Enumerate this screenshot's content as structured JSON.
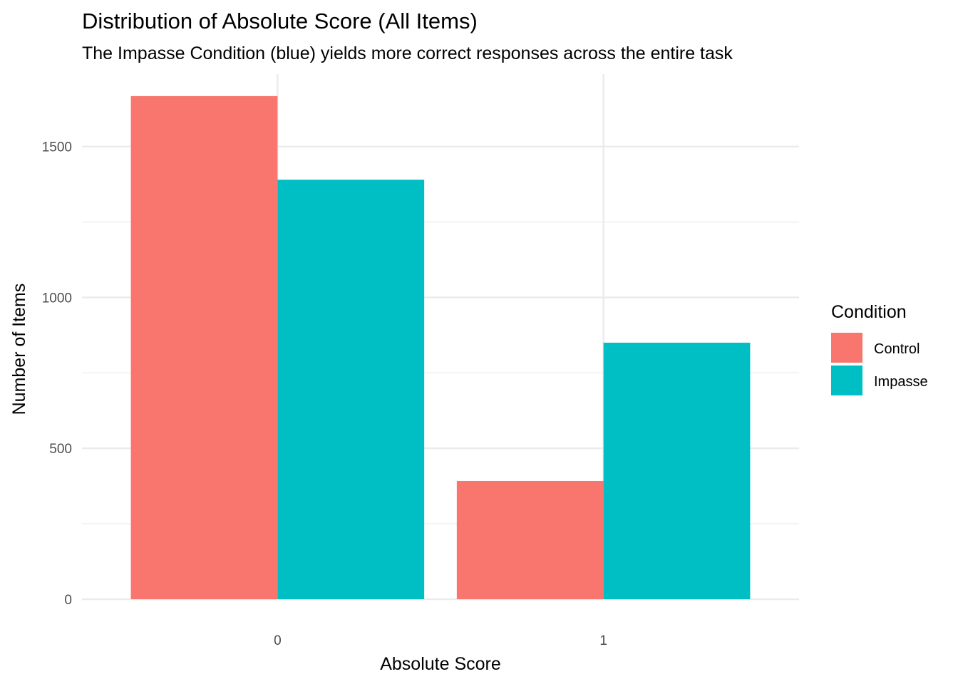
{
  "chart_data": {
    "type": "bar",
    "title": "Distribution of Absolute Score (All Items)",
    "subtitle": "The Impasse Condition (blue) yields more correct responses across the entire task",
    "xlabel": "Absolute Score",
    "ylabel": "Number of Items",
    "categories": [
      "0",
      "1"
    ],
    "series": [
      {
        "name": "Control",
        "color": "#F8766D",
        "values": [
          1667,
          392
        ]
      },
      {
        "name": "Impasse",
        "color": "#00BFC4",
        "values": [
          1390,
          850
        ]
      }
    ],
    "yticks": [
      0,
      500,
      1000,
      1500
    ],
    "ylim": [
      0,
      1740
    ],
    "grid": true,
    "legend": {
      "title": "Condition",
      "position": "right"
    }
  }
}
